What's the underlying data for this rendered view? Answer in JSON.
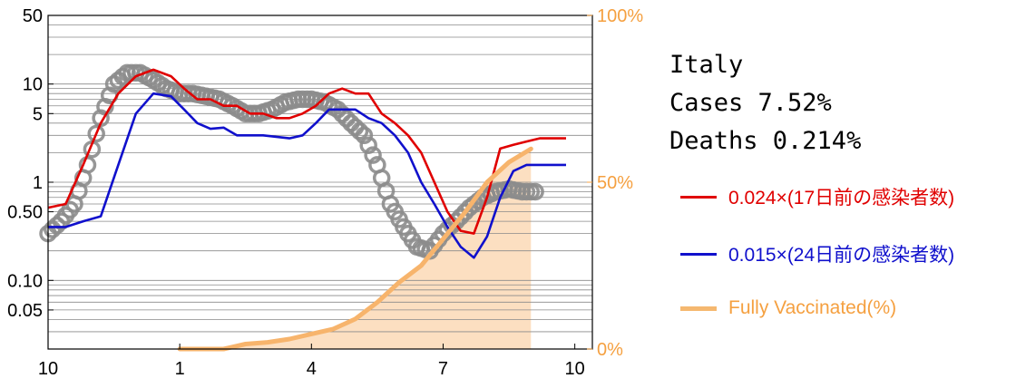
{
  "info": {
    "country": "Italy",
    "cases": "Cases 7.52%",
    "deaths": "Deaths 0.214%"
  },
  "legend": [
    {
      "label": "0.024×(17日前の感染者数)",
      "color": "#e00000"
    },
    {
      "label": "0.015×(24日前の感染者数)",
      "color": "#1010cc"
    },
    {
      "label": "Fully Vaccinated(%)",
      "color": "#f5a040"
    }
  ],
  "chart_data": {
    "type": "line",
    "x_axis": {
      "ticks": [
        "10",
        "1",
        "4",
        "7",
        "10"
      ],
      "tick_positions": [
        0,
        3,
        6,
        9,
        12
      ],
      "xlim": [
        0,
        12.4
      ]
    },
    "y_left": {
      "scale": "log",
      "ylim": [
        0.02,
        50
      ],
      "tick_values": [
        50,
        10,
        5,
        1,
        0.5,
        0.1,
        0.05
      ],
      "tick_labels": [
        "50",
        "10",
        "5",
        "1",
        "0.50",
        "0.10",
        "0.05"
      ]
    },
    "y_right": {
      "ylim": [
        0,
        100
      ],
      "tick_values": [
        100,
        50,
        0
      ],
      "tick_labels": [
        "100%",
        "50%",
        "0%"
      ],
      "color": "#f5a040"
    },
    "grid": "horizontal",
    "series": [
      {
        "name": "Deaths (actual)",
        "style": "circles",
        "color": "#888888",
        "x": [
          0,
          0.3,
          0.6,
          0.9,
          1.2,
          1.5,
          1.8,
          2.1,
          2.4,
          2.7,
          3.0,
          3.3,
          3.6,
          3.9,
          4.2,
          4.5,
          4.8,
          5.1,
          5.4,
          5.7,
          6.0,
          6.3,
          6.6,
          6.9,
          7.2,
          7.5,
          7.8,
          8.1,
          8.4,
          8.7,
          9.0,
          9.3,
          9.6,
          9.9,
          10.2,
          10.5,
          10.8,
          11.1
        ],
        "y": [
          0.3,
          0.4,
          0.6,
          1.5,
          4.5,
          10,
          13,
          13,
          11,
          9,
          8,
          8,
          7.5,
          7,
          6,
          5,
          5,
          5.5,
          6.5,
          7,
          7,
          6.5,
          5.5,
          4,
          3,
          1.5,
          0.6,
          0.35,
          0.22,
          0.2,
          0.3,
          0.4,
          0.55,
          0.7,
          0.8,
          0.85,
          0.8,
          0.8
        ]
      },
      {
        "name": "0.024×(17日前の感染者数)",
        "style": "line",
        "color": "#e00000",
        "x": [
          0,
          0.4,
          0.8,
          1.2,
          1.6,
          2.0,
          2.4,
          2.8,
          3.1,
          3.4,
          3.7,
          4.0,
          4.3,
          4.6,
          4.9,
          5.2,
          5.5,
          5.8,
          6.1,
          6.4,
          6.7,
          7.0,
          7.3,
          7.6,
          7.9,
          8.2,
          8.5,
          8.8,
          9.1,
          9.4,
          9.7,
          10.0,
          10.3,
          10.6,
          10.9,
          11.2,
          11.5,
          11.8
        ],
        "y": [
          0.55,
          0.6,
          1.5,
          4,
          8,
          12,
          14,
          12,
          9,
          7,
          7,
          6,
          6,
          5,
          5,
          4.5,
          4.5,
          5,
          6,
          8,
          9,
          8,
          8,
          5,
          4,
          3,
          2,
          1,
          0.5,
          0.32,
          0.3,
          0.7,
          2.2,
          2.4,
          2.6,
          2.8,
          2.8,
          2.8
        ]
      },
      {
        "name": "0.015×(24日前の感染者数)",
        "style": "line",
        "color": "#1010cc",
        "x": [
          0,
          0.4,
          0.8,
          1.2,
          1.6,
          2.0,
          2.4,
          2.8,
          3.1,
          3.4,
          3.7,
          4.0,
          4.3,
          4.6,
          4.9,
          5.2,
          5.5,
          5.8,
          6.1,
          6.4,
          6.7,
          7.0,
          7.3,
          7.6,
          7.9,
          8.2,
          8.5,
          8.8,
          9.1,
          9.4,
          9.7,
          10.0,
          10.3,
          10.6,
          10.9,
          11.2,
          11.5,
          11.8
        ],
        "y": [
          0.35,
          0.35,
          0.4,
          0.45,
          1.5,
          5,
          8,
          7.5,
          5.5,
          4,
          3.5,
          3.6,
          3,
          3,
          3,
          2.9,
          2.8,
          3,
          4,
          5.5,
          5.5,
          5.5,
          4.5,
          4,
          3,
          2,
          1,
          0.6,
          0.35,
          0.22,
          0.17,
          0.28,
          0.7,
          1.3,
          1.5,
          1.5,
          1.5,
          1.5
        ]
      },
      {
        "name": "Fully Vaccinated(%)",
        "style": "area",
        "color": "#f5a040",
        "axis": "right",
        "x": [
          3.0,
          3.5,
          4.0,
          4.5,
          5.0,
          5.5,
          6.0,
          6.5,
          7.0,
          7.5,
          8.0,
          8.5,
          9.0,
          9.5,
          10.0,
          10.5,
          11.0
        ],
        "y": [
          0,
          0,
          0,
          1.5,
          2,
          3,
          4.5,
          6,
          9,
          14,
          20,
          25,
          33,
          41,
          50,
          56,
          60
        ]
      }
    ]
  }
}
